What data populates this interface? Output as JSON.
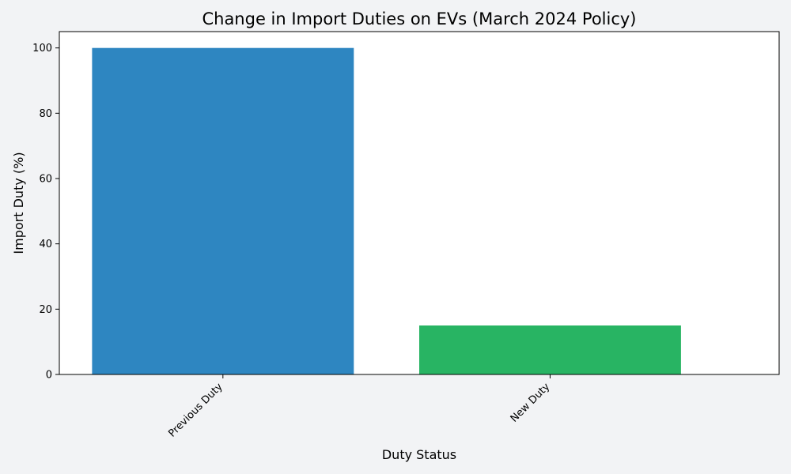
{
  "chart_data": {
    "type": "bar",
    "title": "Change in Import Duties on EVs (March 2024 Policy)",
    "xlabel": "Duty Status",
    "ylabel": "Import Duty (%)",
    "categories": [
      "Previous Duty",
      "New Duty"
    ],
    "values": [
      100,
      15
    ],
    "bar_colors": [
      "#2e86c1",
      "#28b463"
    ],
    "ylim": [
      0,
      105
    ],
    "yticks": [
      0,
      20,
      40,
      60,
      80,
      100
    ],
    "grid": false,
    "legend": false
  },
  "colors": {
    "figure_background": "#f2f3f5",
    "plot_background": "#ffffff"
  }
}
